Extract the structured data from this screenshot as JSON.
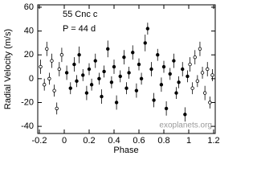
{
  "chart_data": {
    "type": "scatter",
    "annotations": [
      "55 Cnc c",
      "P = 44 d"
    ],
    "watermark": "exoplanets.org",
    "x_label": "Phase",
    "y_label": "Radial Velocity  (m/s)",
    "xlim": [
      -0.2,
      1.2
    ],
    "ylim": [
      -46,
      62
    ],
    "xticks": [
      -0.2,
      0,
      0.2,
      0.4,
      0.6,
      0.8,
      1,
      1.2
    ],
    "yticks": [
      -40,
      -20,
      0,
      20,
      40,
      60
    ],
    "series": [
      {
        "color": "#000000",
        "filled": true,
        "x": [
          0.02,
          0.05,
          0.08,
          0.1,
          0.12,
          0.15,
          0.18,
          0.2,
          0.22,
          0.25,
          0.28,
          0.3,
          0.32,
          0.35,
          0.38,
          0.4,
          0.42,
          0.45,
          0.48,
          0.5,
          0.52,
          0.55,
          0.58,
          0.6,
          0.62,
          0.65,
          0.67,
          0.7,
          0.72,
          0.75,
          0.78,
          0.8,
          0.82,
          0.85,
          0.88,
          0.9,
          0.92,
          0.95,
          0.97,
          0.99
        ],
        "values": [
          5,
          -8,
          12,
          -2,
          20,
          3,
          -12,
          8,
          -5,
          15,
          0,
          -15,
          6,
          25,
          -3,
          10,
          -20,
          2,
          18,
          -8,
          5,
          22,
          -10,
          12,
          0,
          30,
          42,
          8,
          -18,
          20,
          -5,
          10,
          -25,
          4,
          15,
          -12,
          -3,
          8,
          -30,
          2
        ],
        "errors": [
          6,
          5,
          6,
          5,
          7,
          5,
          6,
          5,
          5,
          6,
          5,
          6,
          5,
          7,
          5,
          6,
          6,
          5,
          6,
          5,
          5,
          6,
          6,
          5,
          5,
          7,
          5,
          6,
          6,
          5,
          6,
          5,
          6,
          5,
          6,
          5,
          5,
          6,
          6,
          5
        ]
      },
      {
        "color": "#000000",
        "filled": false,
        "x": [
          -0.19,
          -0.16,
          -0.14,
          -0.12,
          -0.1,
          -0.08,
          -0.06,
          -0.04,
          -0.02,
          1.01,
          1.03,
          1.05,
          1.07,
          1.09,
          1.11,
          1.13,
          1.15,
          1.17,
          1.19
        ],
        "values": [
          10,
          -5,
          25,
          0,
          15,
          -10,
          -25,
          8,
          20,
          12,
          -8,
          18,
          -2,
          25,
          5,
          -12,
          8,
          -20,
          3
        ],
        "errors": [
          6,
          5,
          6,
          5,
          6,
          5,
          5,
          6,
          6,
          6,
          5,
          6,
          5,
          6,
          5,
          6,
          6,
          5,
          5
        ]
      }
    ]
  }
}
